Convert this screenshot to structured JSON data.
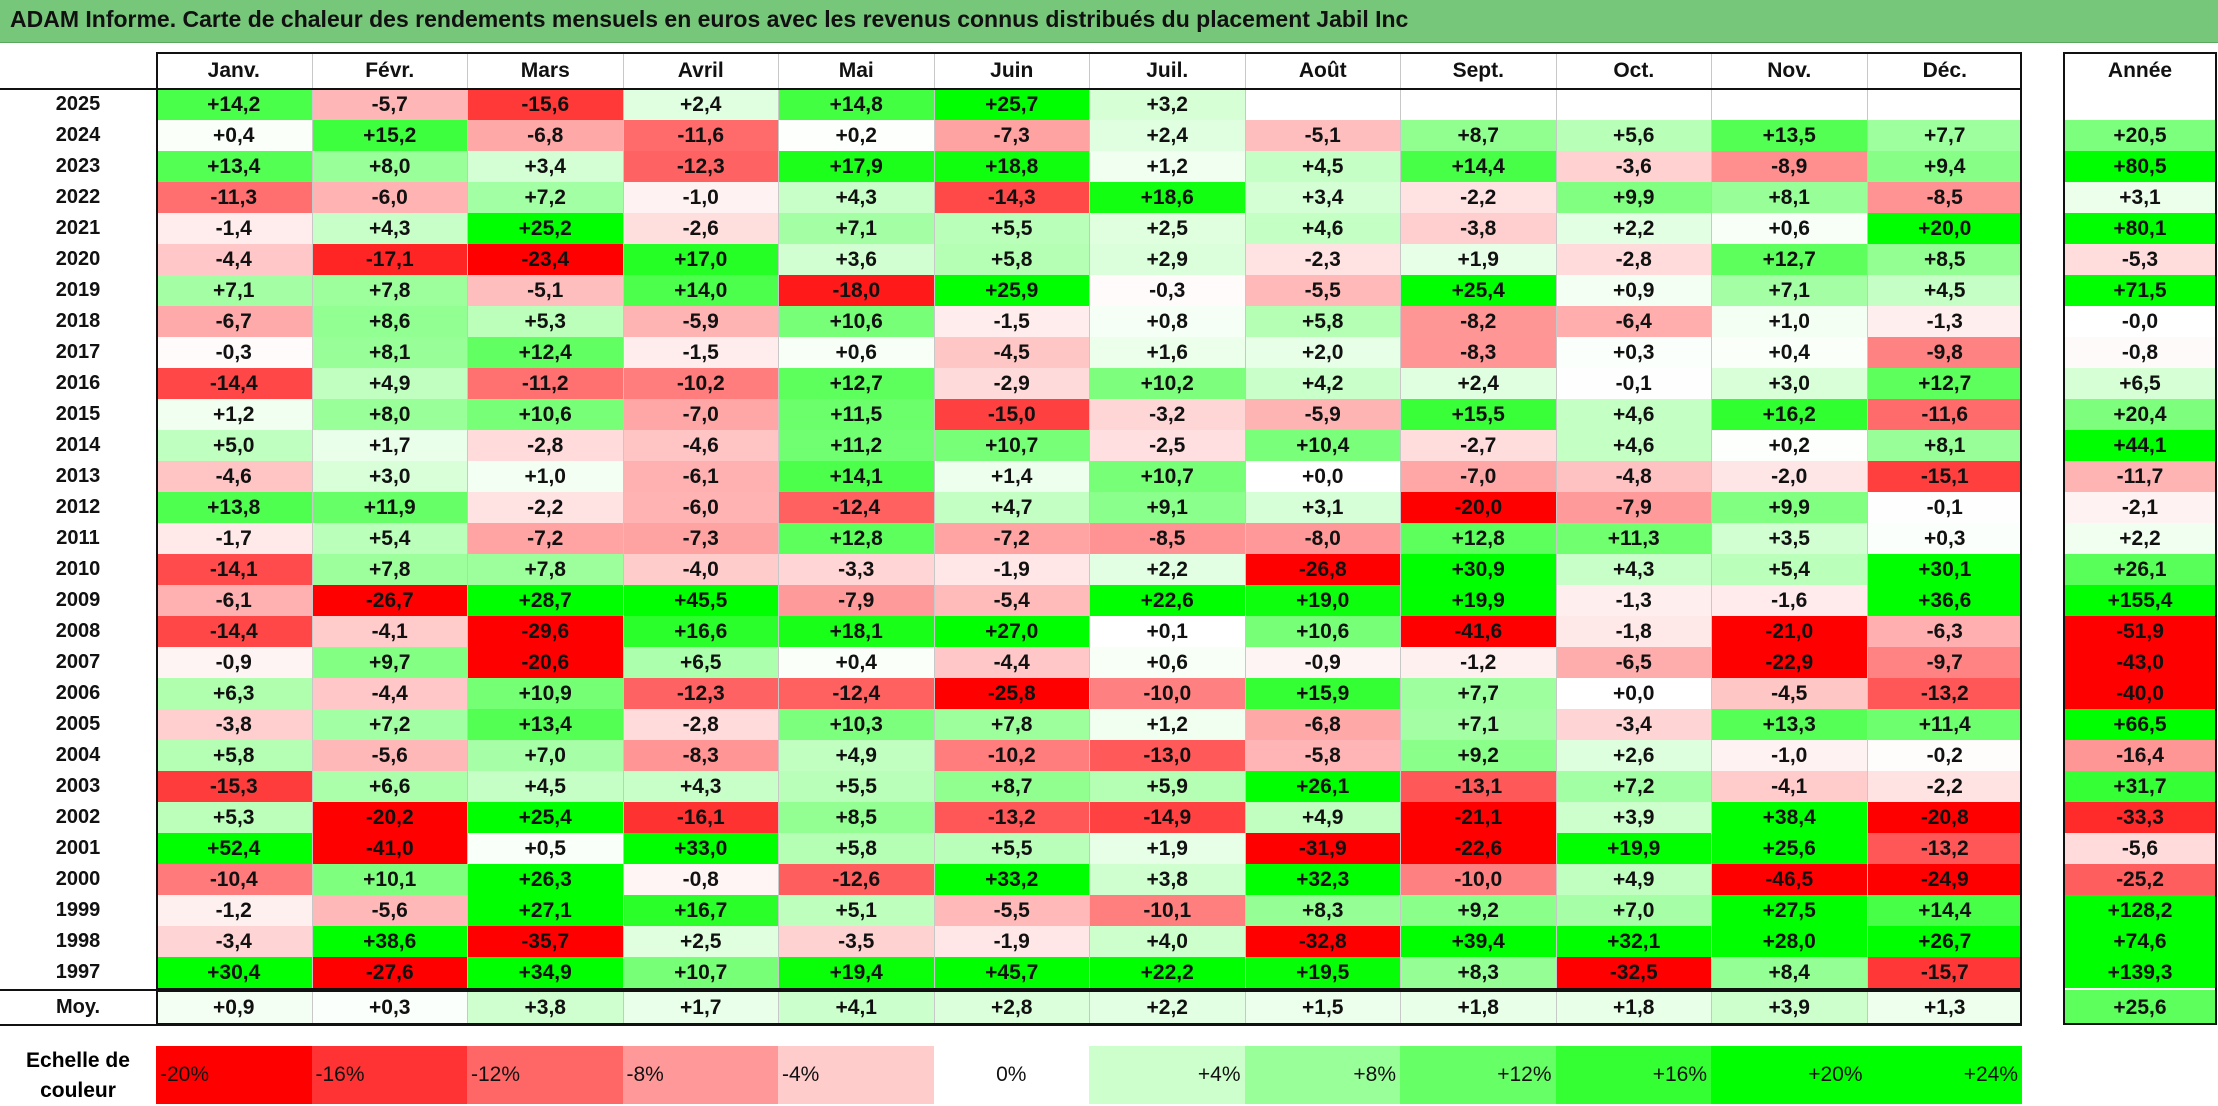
{
  "title": "ADAM Informe. Carte de chaleur des rendements mensuels en euros avec les revenus connus distribués du placement Jabil Inc",
  "chart_data": {
    "type": "heatmap",
    "months": [
      "Janv.",
      "Févr.",
      "Mars",
      "Avril",
      "Mai",
      "Juin",
      "Juil.",
      "Août",
      "Sept.",
      "Oct.",
      "Nov.",
      "Déc."
    ],
    "year_header": "Année",
    "rows": [
      {
        "year": "2025",
        "values": [
          "+14,2",
          "-5,7",
          "-15,6",
          "+2,4",
          "+14,8",
          "+25,7",
          "+3,2",
          "",
          "",
          "",
          "",
          ""
        ],
        "annual": ""
      },
      {
        "year": "2024",
        "values": [
          "+0,4",
          "+15,2",
          "-6,8",
          "-11,6",
          "+0,2",
          "-7,3",
          "+2,4",
          "-5,1",
          "+8,7",
          "+5,6",
          "+13,5",
          "+7,7"
        ],
        "annual": "+20,5"
      },
      {
        "year": "2023",
        "values": [
          "+13,4",
          "+8,0",
          "+3,4",
          "-12,3",
          "+17,9",
          "+18,8",
          "+1,2",
          "+4,5",
          "+14,4",
          "-3,6",
          "-8,9",
          "+9,4"
        ],
        "annual": "+80,5"
      },
      {
        "year": "2022",
        "values": [
          "-11,3",
          "-6,0",
          "+7,2",
          "-1,0",
          "+4,3",
          "-14,3",
          "+18,6",
          "+3,4",
          "-2,2",
          "+9,9",
          "+8,1",
          "-8,5"
        ],
        "annual": "+3,1"
      },
      {
        "year": "2021",
        "values": [
          "-1,4",
          "+4,3",
          "+25,2",
          "-2,6",
          "+7,1",
          "+5,5",
          "+2,5",
          "+4,6",
          "-3,8",
          "+2,2",
          "+0,6",
          "+20,0"
        ],
        "annual": "+80,1"
      },
      {
        "year": "2020",
        "values": [
          "-4,4",
          "-17,1",
          "-23,4",
          "+17,0",
          "+3,6",
          "+5,8",
          "+2,9",
          "-2,3",
          "+1,9",
          "-2,8",
          "+12,7",
          "+8,5"
        ],
        "annual": "-5,3"
      },
      {
        "year": "2019",
        "values": [
          "+7,1",
          "+7,8",
          "-5,1",
          "+14,0",
          "-18,0",
          "+25,9",
          "-0,3",
          "-5,5",
          "+25,4",
          "+0,9",
          "+7,1",
          "+4,5"
        ],
        "annual": "+71,5"
      },
      {
        "year": "2018",
        "values": [
          "-6,7",
          "+8,6",
          "+5,3",
          "-5,9",
          "+10,6",
          "-1,5",
          "+0,8",
          "+5,8",
          "-8,2",
          "-6,4",
          "+1,0",
          "-1,3"
        ],
        "annual": "-0,0"
      },
      {
        "year": "2017",
        "values": [
          "-0,3",
          "+8,1",
          "+12,4",
          "-1,5",
          "+0,6",
          "-4,5",
          "+1,6",
          "+2,0",
          "-8,3",
          "+0,3",
          "+0,4",
          "-9,8"
        ],
        "annual": "-0,8"
      },
      {
        "year": "2016",
        "values": [
          "-14,4",
          "+4,9",
          "-11,2",
          "-10,2",
          "+12,7",
          "-2,9",
          "+10,2",
          "+4,2",
          "+2,4",
          "-0,1",
          "+3,0",
          "+12,7"
        ],
        "annual": "+6,5"
      },
      {
        "year": "2015",
        "values": [
          "+1,2",
          "+8,0",
          "+10,6",
          "-7,0",
          "+11,5",
          "-15,0",
          "-3,2",
          "-5,9",
          "+15,5",
          "+4,6",
          "+16,2",
          "-11,6"
        ],
        "annual": "+20,4"
      },
      {
        "year": "2014",
        "values": [
          "+5,0",
          "+1,7",
          "-2,8",
          "-4,6",
          "+11,2",
          "+10,7",
          "-2,5",
          "+10,4",
          "-2,7",
          "+4,6",
          "+0,2",
          "+8,1"
        ],
        "annual": "+44,1"
      },
      {
        "year": "2013",
        "values": [
          "-4,6",
          "+3,0",
          "+1,0",
          "-6,1",
          "+14,1",
          "+1,4",
          "+10,7",
          "+0,0",
          "-7,0",
          "-4,8",
          "-2,0",
          "-15,1"
        ],
        "annual": "-11,7"
      },
      {
        "year": "2012",
        "values": [
          "+13,8",
          "+11,9",
          "-2,2",
          "-6,0",
          "-12,4",
          "+4,7",
          "+9,1",
          "+3,1",
          "-20,0",
          "-7,9",
          "+9,9",
          "-0,1"
        ],
        "annual": "-2,1"
      },
      {
        "year": "2011",
        "values": [
          "-1,7",
          "+5,4",
          "-7,2",
          "-7,3",
          "+12,8",
          "-7,2",
          "-8,5",
          "-8,0",
          "+12,8",
          "+11,3",
          "+3,5",
          "+0,3"
        ],
        "annual": "+2,2"
      },
      {
        "year": "2010",
        "values": [
          "-14,1",
          "+7,8",
          "+7,8",
          "-4,0",
          "-3,3",
          "-1,9",
          "+2,2",
          "-26,8",
          "+30,9",
          "+4,3",
          "+5,4",
          "+30,1"
        ],
        "annual": "+26,1"
      },
      {
        "year": "2009",
        "values": [
          "-6,1",
          "-26,7",
          "+28,7",
          "+45,5",
          "-7,9",
          "-5,4",
          "+22,6",
          "+19,0",
          "+19,9",
          "-1,3",
          "-1,6",
          "+36,6"
        ],
        "annual": "+155,4"
      },
      {
        "year": "2008",
        "values": [
          "-14,4",
          "-4,1",
          "-29,6",
          "+16,6",
          "+18,1",
          "+27,0",
          "+0,1",
          "+10,6",
          "-41,6",
          "-1,8",
          "-21,0",
          "-6,3"
        ],
        "annual": "-51,9"
      },
      {
        "year": "2007",
        "values": [
          "-0,9",
          "+9,7",
          "-20,6",
          "+6,5",
          "+0,4",
          "-4,4",
          "+0,6",
          "-0,9",
          "-1,2",
          "-6,5",
          "-22,9",
          "-9,7"
        ],
        "annual": "-43,0"
      },
      {
        "year": "2006",
        "values": [
          "+6,3",
          "-4,4",
          "+10,9",
          "-12,3",
          "-12,4",
          "-25,8",
          "-10,0",
          "+15,9",
          "+7,7",
          "+0,0",
          "-4,5",
          "-13,2"
        ],
        "annual": "-40,0"
      },
      {
        "year": "2005",
        "values": [
          "-3,8",
          "+7,2",
          "+13,4",
          "-2,8",
          "+10,3",
          "+7,8",
          "+1,2",
          "-6,8",
          "+7,1",
          "-3,4",
          "+13,3",
          "+11,4"
        ],
        "annual": "+66,5"
      },
      {
        "year": "2004",
        "values": [
          "+5,8",
          "-5,6",
          "+7,0",
          "-8,3",
          "+4,9",
          "-10,2",
          "-13,0",
          "-5,8",
          "+9,2",
          "+2,6",
          "-1,0",
          "-0,2"
        ],
        "annual": "-16,4"
      },
      {
        "year": "2003",
        "values": [
          "-15,3",
          "+6,6",
          "+4,5",
          "+4,3",
          "+5,5",
          "+8,7",
          "+5,9",
          "+26,1",
          "-13,1",
          "+7,2",
          "-4,1",
          "-2,2"
        ],
        "annual": "+31,7"
      },
      {
        "year": "2002",
        "values": [
          "+5,3",
          "-20,2",
          "+25,4",
          "-16,1",
          "+8,5",
          "-13,2",
          "-14,9",
          "+4,9",
          "-21,1",
          "+3,9",
          "+38,4",
          "-20,8"
        ],
        "annual": "-33,3"
      },
      {
        "year": "2001",
        "values": [
          "+52,4",
          "-41,0",
          "+0,5",
          "+33,0",
          "+5,8",
          "+5,5",
          "+1,9",
          "-31,9",
          "-22,6",
          "+19,9",
          "+25,6",
          "-13,2"
        ],
        "annual": "-5,6"
      },
      {
        "year": "2000",
        "values": [
          "-10,4",
          "+10,1",
          "+26,3",
          "-0,8",
          "-12,6",
          "+33,2",
          "+3,8",
          "+32,3",
          "-10,0",
          "+4,9",
          "-46,5",
          "-24,9"
        ],
        "annual": "-25,2"
      },
      {
        "year": "1999",
        "values": [
          "-1,2",
          "-5,6",
          "+27,1",
          "+16,7",
          "+5,1",
          "-5,5",
          "-10,1",
          "+8,3",
          "+9,2",
          "+7,0",
          "+27,5",
          "+14,4"
        ],
        "annual": "+128,2"
      },
      {
        "year": "1998",
        "values": [
          "-3,4",
          "+38,6",
          "-35,7",
          "+2,5",
          "-3,5",
          "-1,9",
          "+4,0",
          "-32,8",
          "+39,4",
          "+32,1",
          "+28,0",
          "+26,7"
        ],
        "annual": "+74,6"
      },
      {
        "year": "1997",
        "values": [
          "+30,4",
          "-27,6",
          "+34,9",
          "+10,7",
          "+19,4",
          "+45,7",
          "+22,2",
          "+19,5",
          "+8,3",
          "-32,5",
          "+8,4",
          "-15,7"
        ],
        "annual": "+139,3"
      }
    ],
    "average": {
      "label": "Moy.",
      "values": [
        "+0,9",
        "+0,3",
        "+3,8",
        "+1,7",
        "+4,1",
        "+2,8",
        "+2,2",
        "+1,5",
        "+1,8",
        "+1,8",
        "+3,9",
        "+1,3"
      ],
      "annual": "+25,6"
    },
    "scale": {
      "label_line1": "Echelle de",
      "label_line2": "couleur",
      "items": [
        {
          "label": "-20%",
          "value": -20
        },
        {
          "label": "-16%",
          "value": -16
        },
        {
          "label": "-12%",
          "value": -12
        },
        {
          "label": "-8%",
          "value": -8
        },
        {
          "label": "-4%",
          "value": -4
        },
        {
          "label": "0%",
          "value": 0
        },
        {
          "label": "+4%",
          "value": 4
        },
        {
          "label": "+8%",
          "value": 8
        },
        {
          "label": "+12%",
          "value": 12
        },
        {
          "label": "+16%",
          "value": 16
        },
        {
          "label": "+20%",
          "value": 20
        },
        {
          "label": "+24%",
          "value": 24
        }
      ]
    },
    "colors": {
      "negative_max": "#ff0000",
      "neutral": "#ffffff",
      "positive_max": "#00ff00"
    }
  }
}
